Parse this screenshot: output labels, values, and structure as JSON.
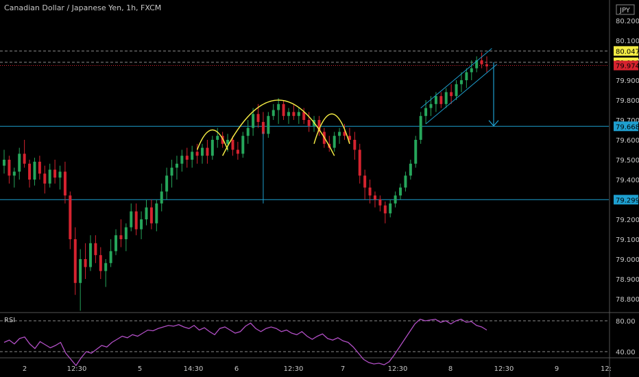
{
  "header": {
    "title": "Canadian Dollar / Japanese Yen, 1h, FXCM",
    "currency": "JPY"
  },
  "colors": {
    "background": "#000000",
    "up": "#26a65b",
    "down": "#d6232f",
    "level_line": "#1e9fcf",
    "pattern": "#f4ec44",
    "rsi": "#b24fc6",
    "tag_yellow": "#f4ec44",
    "tag_red": "#d6232f",
    "tag_blue": "#1e9fcf",
    "text": "#c8c8c8",
    "grid_dash": "#8c8c8c"
  },
  "chart_data": {
    "type": "candlestick",
    "ylim": [
      78.62,
      80.21
    ],
    "y_ticks": [
      "80.200",
      "80.100",
      "80.000",
      "79.900",
      "79.800",
      "79.700",
      "79.600",
      "79.500",
      "79.400",
      "79.300",
      "79.200",
      "79.100",
      "79.000",
      "78.900",
      "78.800",
      "78.700"
    ],
    "x_ticks": [
      "2",
      "12:30",
      "5",
      "14:30",
      "6",
      "12:30",
      "7",
      "12:30",
      "8",
      "12:30",
      "9",
      "12:"
    ],
    "price_tags": [
      {
        "value": "80.047",
        "style": "tag_yellow"
      },
      {
        "value": "79.990",
        "style": "tag_yellow"
      },
      {
        "value": "79.974",
        "style": "tag_red"
      },
      {
        "value": "79.668",
        "style": "tag_blue"
      },
      {
        "value": "79.299",
        "style": "tag_blue"
      }
    ],
    "horizontal_levels": [
      79.668,
      79.299
    ],
    "dashed_levels": [
      80.047,
      79.99
    ],
    "current_price": 79.974,
    "candles": [
      [
        79.47,
        79.55,
        79.43,
        79.5
      ],
      [
        79.5,
        79.52,
        79.38,
        79.42
      ],
      [
        79.42,
        79.46,
        79.36,
        79.44
      ],
      [
        79.44,
        79.56,
        79.4,
        79.53
      ],
      [
        79.53,
        79.6,
        79.46,
        79.48
      ],
      [
        79.48,
        79.5,
        79.36,
        79.4
      ],
      [
        79.4,
        79.51,
        79.37,
        79.49
      ],
      [
        79.49,
        79.52,
        79.4,
        79.43
      ],
      [
        79.43,
        79.47,
        79.33,
        79.38
      ],
      [
        79.38,
        79.48,
        79.36,
        79.45
      ],
      [
        79.45,
        79.5,
        79.38,
        79.41
      ],
      [
        79.41,
        79.47,
        79.35,
        79.44
      ],
      [
        79.44,
        79.49,
        79.28,
        79.32
      ],
      [
        79.32,
        79.34,
        79.05,
        79.1
      ],
      [
        79.1,
        79.16,
        78.82,
        78.88
      ],
      [
        78.88,
        79.05,
        78.74,
        79.0
      ],
      [
        79.0,
        79.08,
        78.9,
        78.96
      ],
      [
        78.96,
        79.12,
        78.94,
        79.08
      ],
      [
        79.08,
        79.12,
        78.98,
        79.02
      ],
      [
        79.02,
        79.06,
        78.9,
        78.94
      ],
      [
        78.94,
        79.0,
        78.86,
        78.98
      ],
      [
        78.98,
        79.1,
        78.96,
        79.04
      ],
      [
        79.04,
        79.15,
        79.02,
        79.12
      ],
      [
        79.12,
        79.2,
        79.06,
        79.1
      ],
      [
        79.1,
        79.18,
        79.04,
        79.16
      ],
      [
        79.16,
        79.28,
        79.14,
        79.24
      ],
      [
        79.24,
        79.28,
        79.12,
        79.15
      ],
      [
        79.15,
        79.24,
        79.1,
        79.2
      ],
      [
        79.2,
        79.3,
        79.17,
        79.26
      ],
      [
        79.26,
        79.3,
        79.15,
        79.18
      ],
      [
        79.18,
        79.3,
        79.14,
        79.28
      ],
      [
        79.28,
        79.38,
        79.24,
        79.34
      ],
      [
        79.34,
        79.46,
        79.3,
        79.42
      ],
      [
        79.42,
        79.5,
        79.36,
        79.46
      ],
      [
        79.46,
        79.52,
        79.4,
        79.48
      ],
      [
        79.48,
        79.55,
        79.44,
        79.52
      ],
      [
        79.52,
        79.56,
        79.46,
        79.5
      ],
      [
        79.5,
        79.57,
        79.46,
        79.54
      ],
      [
        79.54,
        79.58,
        79.48,
        79.52
      ],
      [
        79.52,
        79.58,
        79.48,
        79.56
      ],
      [
        79.56,
        79.6,
        79.48,
        79.52
      ],
      [
        79.52,
        79.62,
        79.5,
        79.6
      ],
      [
        79.6,
        79.66,
        79.56,
        79.62
      ],
      [
        79.62,
        79.64,
        79.56,
        79.58
      ],
      [
        79.58,
        79.63,
        79.54,
        79.6
      ],
      [
        79.6,
        79.62,
        79.52,
        79.55
      ],
      [
        79.55,
        79.59,
        79.5,
        79.53
      ],
      [
        79.53,
        79.64,
        79.51,
        79.62
      ],
      [
        79.62,
        79.7,
        79.58,
        79.66
      ],
      [
        79.66,
        79.76,
        79.62,
        79.73
      ],
      [
        79.73,
        79.78,
        79.66,
        79.69
      ],
      [
        79.69,
        79.74,
        79.6,
        79.63
      ],
      [
        79.63,
        79.74,
        79.61,
        79.72
      ],
      [
        79.72,
        79.78,
        79.7,
        79.75
      ],
      [
        79.75,
        79.81,
        79.68,
        79.78
      ],
      [
        79.78,
        79.8,
        79.7,
        79.72
      ],
      [
        79.72,
        79.76,
        79.68,
        79.74
      ],
      [
        79.74,
        79.78,
        79.7,
        79.72
      ],
      [
        79.72,
        79.76,
        79.68,
        79.74
      ],
      [
        79.74,
        79.76,
        79.68,
        79.7
      ],
      [
        79.7,
        79.74,
        79.64,
        79.67
      ],
      [
        79.67,
        79.72,
        79.64,
        79.7
      ],
      [
        79.7,
        79.72,
        79.62,
        79.64
      ],
      [
        79.64,
        79.66,
        79.56,
        79.58
      ],
      [
        79.58,
        79.62,
        79.54,
        79.56
      ],
      [
        79.56,
        79.64,
        79.54,
        79.62
      ],
      [
        79.62,
        79.66,
        79.58,
        79.64
      ],
      [
        79.64,
        79.68,
        79.6,
        79.62
      ],
      [
        79.62,
        79.66,
        79.58,
        79.6
      ],
      [
        79.6,
        79.64,
        79.5,
        79.55
      ],
      [
        79.55,
        79.58,
        79.38,
        79.42
      ],
      [
        79.42,
        79.45,
        79.3,
        79.36
      ],
      [
        79.36,
        79.4,
        79.28,
        79.32
      ],
      [
        79.32,
        79.34,
        79.26,
        79.3
      ],
      [
        79.3,
        79.32,
        79.24,
        79.27
      ],
      [
        79.27,
        79.29,
        79.18,
        79.23
      ],
      [
        79.23,
        79.3,
        79.21,
        79.28
      ],
      [
        79.28,
        79.34,
        79.26,
        79.32
      ],
      [
        79.32,
        79.38,
        79.3,
        79.36
      ],
      [
        79.36,
        79.44,
        79.34,
        79.42
      ],
      [
        79.42,
        79.5,
        79.4,
        79.48
      ],
      [
        79.48,
        79.62,
        79.46,
        79.6
      ],
      [
        79.6,
        79.74,
        79.58,
        79.72
      ],
      [
        79.72,
        79.8,
        79.68,
        79.76
      ],
      [
        79.76,
        79.82,
        79.72,
        79.78
      ],
      [
        79.78,
        79.84,
        79.74,
        79.82
      ],
      [
        79.82,
        79.84,
        79.76,
        79.78
      ],
      [
        79.78,
        79.86,
        79.76,
        79.84
      ],
      [
        79.84,
        79.88,
        79.78,
        79.82
      ],
      [
        79.82,
        79.9,
        79.8,
        79.88
      ],
      [
        79.88,
        79.94,
        79.84,
        79.9
      ],
      [
        79.9,
        79.96,
        79.86,
        79.94
      ],
      [
        79.94,
        80.0,
        79.9,
        79.96
      ],
      [
        79.96,
        80.02,
        79.94,
        80.0
      ],
      [
        80.0,
        80.04,
        79.96,
        79.98
      ],
      [
        79.98,
        80.02,
        79.94,
        79.97
      ]
    ],
    "rsi": {
      "label": "RSI",
      "levels": [
        "80.00",
        "40.00"
      ],
      "values": [
        52,
        55,
        50,
        57,
        59,
        50,
        44,
        53,
        49,
        45,
        48,
        52,
        38,
        30,
        22,
        32,
        40,
        38,
        43,
        48,
        46,
        52,
        56,
        60,
        58,
        62,
        60,
        64,
        68,
        67,
        70,
        72,
        74,
        73,
        75,
        72,
        70,
        74,
        68,
        71,
        66,
        62,
        70,
        72,
        68,
        64,
        66,
        73,
        77,
        70,
        66,
        70,
        72,
        70,
        66,
        68,
        64,
        62,
        66,
        60,
        56,
        60,
        63,
        57,
        55,
        58,
        54,
        52,
        46,
        38,
        30,
        26,
        24,
        25,
        23,
        27,
        36,
        46,
        56,
        66,
        76,
        82,
        80,
        81,
        82,
        78,
        80,
        76,
        80,
        82,
        78,
        79,
        74,
        72,
        68
      ]
    }
  },
  "axis": {
    "time_label_text": "12:30"
  }
}
